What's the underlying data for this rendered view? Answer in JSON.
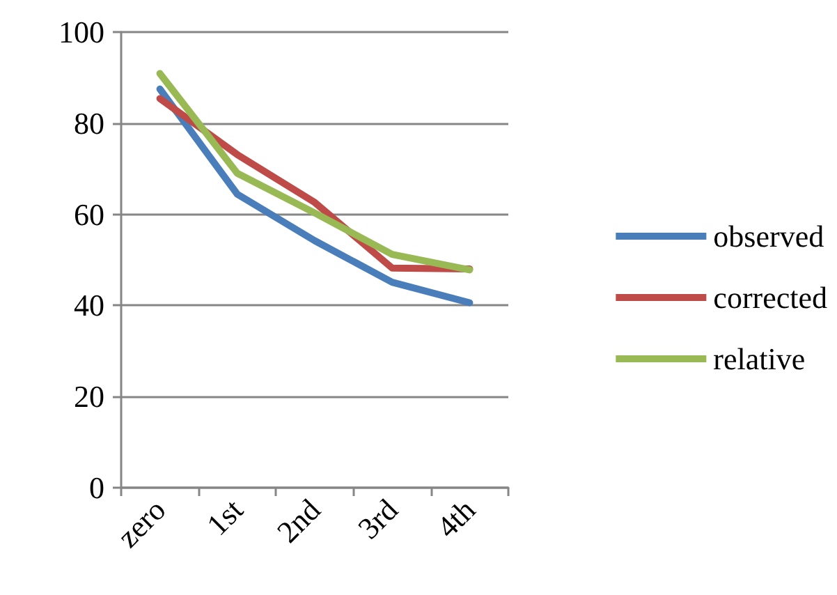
{
  "chart_data": {
    "type": "line",
    "categories": [
      "zero",
      "1st",
      "2nd",
      "3rd",
      "4th"
    ],
    "series": [
      {
        "name": "observed",
        "color": "#4a7ebb",
        "values": [
          87.5,
          64.4,
          54.2,
          45.1,
          40.6
        ]
      },
      {
        "name": "corrected",
        "color": "#be4b48",
        "values": [
          85.4,
          73.1,
          62.6,
          48.2,
          48.0
        ]
      },
      {
        "name": "relative",
        "color": "#98b954",
        "values": [
          90.9,
          69.0,
          60.3,
          51.2,
          47.8
        ]
      }
    ],
    "ylim": [
      0,
      100
    ],
    "yticks": [
      0,
      20,
      40,
      60,
      80,
      100
    ],
    "grid": "y",
    "legend": "right",
    "marker": "none",
    "line_style": "solid"
  }
}
